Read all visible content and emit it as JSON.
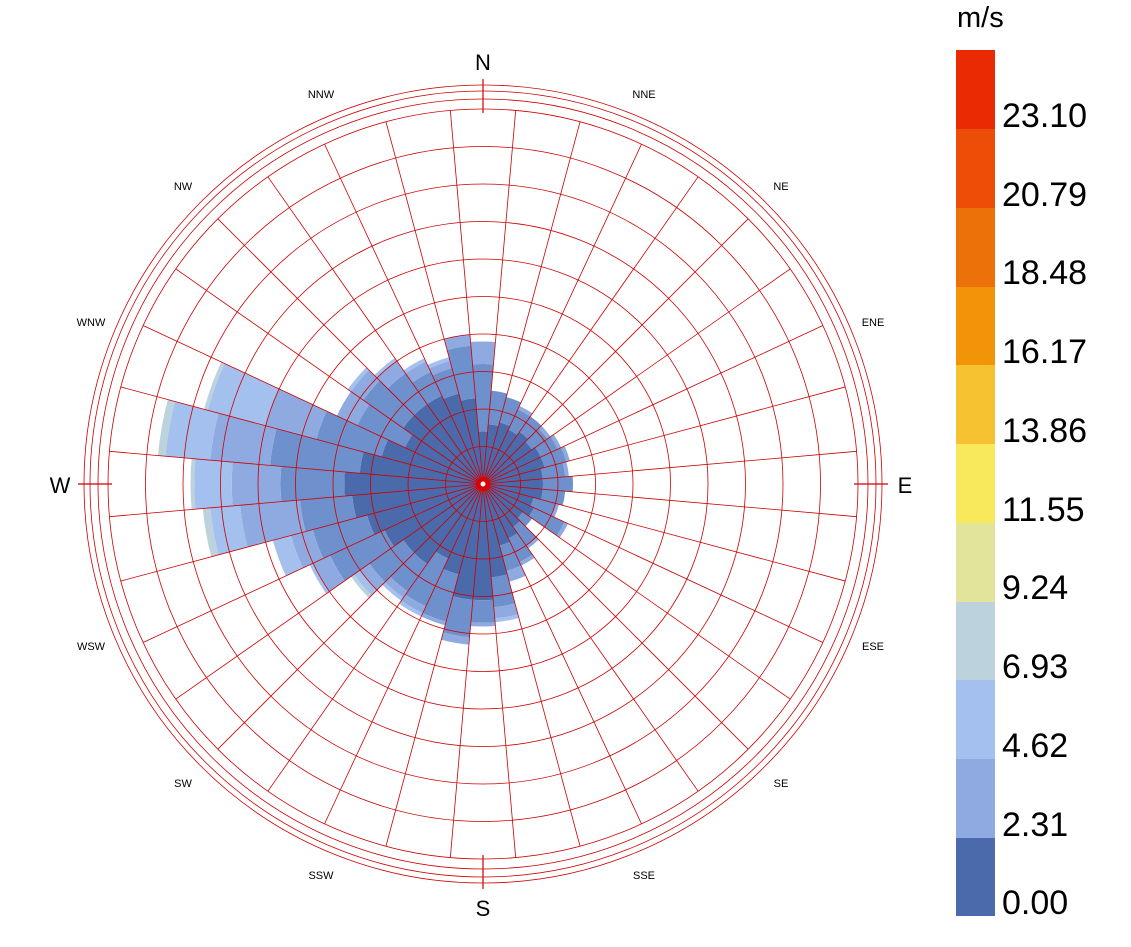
{
  "chart_data": {
    "type": "windrose",
    "unit": "m/s",
    "directions": [
      "N",
      "NNE",
      "NE",
      "ENE",
      "E",
      "ESE",
      "SE",
      "SSE",
      "S",
      "SSW",
      "SW",
      "WSW",
      "W",
      "WNW",
      "NW",
      "NNW"
    ],
    "speed_bins": [
      0.0,
      2.31,
      4.62,
      6.93,
      9.24,
      11.55,
      13.86,
      16.17,
      18.48,
      20.79,
      23.1
    ],
    "legend_ticks": [
      "23.10",
      "20.79",
      "18.48",
      "16.17",
      "13.86",
      "11.55",
      "9.24",
      "6.93",
      "4.62",
      "2.31",
      "0.00"
    ],
    "bin_colors": [
      "#4a6aab",
      "#6e90cc",
      "#8faae0",
      "#a3c0ef",
      "#bcd2dc",
      "#e1e49a",
      "#f8e95c",
      "#f6c232",
      "#f19407",
      "#ec7109",
      "#ec4e08",
      "#ea2a03"
    ],
    "grid_color": "#cc0000",
    "rings": 10,
    "sectors": 36,
    "sector_bins": [
      [
        1.4,
        3.2,
        3.8
      ],
      [
        1.6,
        2.5,
        2.5
      ],
      [
        1.7,
        2.4,
        2.4
      ],
      [
        1.6,
        2.2,
        2.3
      ],
      [
        1.7,
        2.2,
        2.2
      ],
      [
        1.6,
        2.1,
        2.2
      ],
      [
        1.7,
        2.2,
        2.3
      ],
      [
        1.7,
        2.3,
        2.4
      ],
      [
        1.6,
        2.2,
        2.3
      ],
      [
        1.6,
        2.4,
        2.4
      ],
      [
        1.6,
        2.2,
        2.2
      ],
      [
        1.4,
        2.0,
        2.1
      ],
      [
        1.5,
        2.4,
        2.5
      ],
      [
        1.3,
        1.6,
        1.6
      ],
      [
        1.4,
        2.0,
        2.1
      ],
      [
        1.6,
        2.3,
        2.4
      ],
      [
        1.7,
        2.4,
        2.7
      ],
      [
        2.5,
        3.3,
        3.6,
        3.7
      ],
      [
        3.1,
        3.7,
        3.8
      ],
      [
        3.1,
        4.1,
        4.3
      ],
      [
        2.5,
        3.8,
        3.9
      ],
      [
        2.2,
        3.6,
        3.8,
        3.9
      ],
      [
        2.6,
        3.5,
        3.7,
        3.8
      ],
      [
        2.6,
        3.7,
        4.0,
        4.2,
        4.3
      ],
      [
        2.9,
        4.5,
        5.0,
        5.1
      ],
      [
        3.2,
        4.7,
        5.3,
        5.8
      ],
      [
        3.5,
        4.9,
        6.5,
        7.3,
        7.5
      ],
      [
        3.7,
        5.4,
        6.7,
        7.7,
        7.8
      ],
      [
        3.3,
        5.7,
        7.3,
        8.5,
        8.7
      ],
      [
        2.8,
        4.6,
        6.0,
        7.6,
        7.7
      ],
      [
        2.3,
        3.7,
        4.3,
        4.3
      ],
      [
        2.6,
        3.9,
        4.3,
        4.4
      ],
      [
        2.6,
        3.6,
        4.0,
        4.1
      ],
      [
        2.6,
        3.3,
        3.6,
        3.7
      ],
      [
        2.5,
        3.2,
        3.4,
        3.5
      ],
      [
        2.3,
        3.7,
        4.0
      ]
    ]
  },
  "labels": {
    "N": "N",
    "E": "E",
    "S": "S",
    "W": "W",
    "NNE": "NNE",
    "NE": "NE",
    "ENE": "ENE",
    "ESE": "ESE",
    "SE": "SE",
    "SSE": "SSE",
    "SSW": "SSW",
    "SW": "SW",
    "WSW": "WSW",
    "WNW": "WNW",
    "NW": "NW",
    "NNW": "NNW"
  },
  "legend": {
    "title": "m/s"
  }
}
